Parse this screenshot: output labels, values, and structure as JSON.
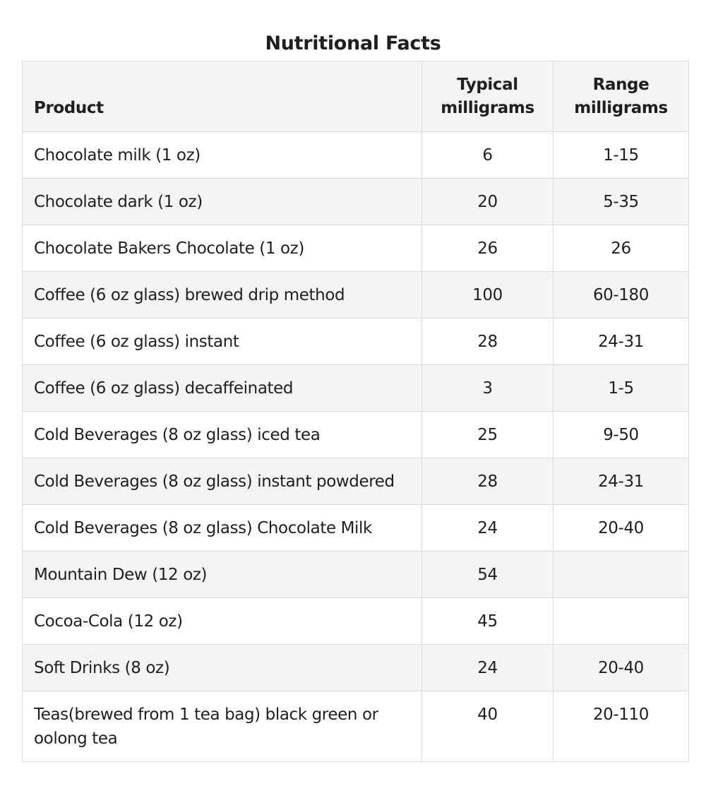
{
  "caption": "Nutritional Facts",
  "columns": {
    "product": "Product",
    "typical": "Typical milligrams",
    "range": "Range milligrams"
  },
  "rows": [
    {
      "product": "Chocolate milk (1 oz)",
      "typical": "6",
      "range": "1-15"
    },
    {
      "product": "Chocolate dark (1 oz)",
      "typical": "20",
      "range": "5-35"
    },
    {
      "product": "Chocolate Bakers Chocolate (1 oz)",
      "typical": "26",
      "range": "26"
    },
    {
      "product": "Coffee (6 oz glass) brewed drip method",
      "typical": "100",
      "range": "60-180"
    },
    {
      "product": "Coffee (6 oz glass) instant",
      "typical": "28",
      "range": "24-31"
    },
    {
      "product": "Coffee (6 oz glass) decaffeinated",
      "typical": "3",
      "range": "1-5"
    },
    {
      "product": "Cold Beverages (8 oz glass) iced tea",
      "typical": "25",
      "range": "9-50"
    },
    {
      "product": "Cold Beverages (8 oz glass) instant powdered",
      "typical": "28",
      "range": "24-31"
    },
    {
      "product": "Cold Beverages (8 oz glass) Chocolate Milk",
      "typical": "24",
      "range": "20-40"
    },
    {
      "product": "Mountain Dew (12 oz)",
      "typical": "54",
      "range": ""
    },
    {
      "product": "Cocoa-Cola (12 oz)",
      "typical": "45",
      "range": ""
    },
    {
      "product": "Soft Drinks (8 oz)",
      "typical": "24",
      "range": "20-40"
    },
    {
      "product": "Teas(brewed from 1 tea bag) black green or oolong tea",
      "typical": "40",
      "range": "20-110"
    }
  ]
}
